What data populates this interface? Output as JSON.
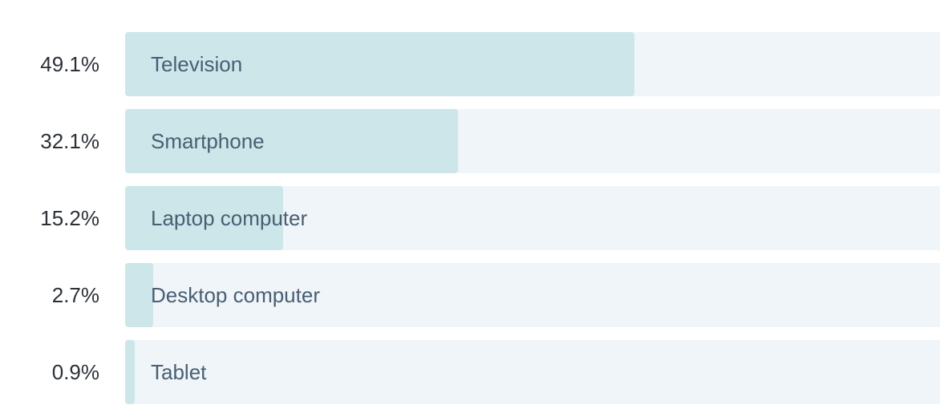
{
  "chart_data": {
    "type": "bar",
    "orientation": "horizontal",
    "categories": [
      "Television",
      "Smartphone",
      "Laptop computer",
      "Desktop computer",
      "Tablet"
    ],
    "values": [
      49.1,
      32.1,
      15.2,
      2.7,
      0.9
    ],
    "value_labels": [
      "49.1%",
      "32.1%",
      "15.2%",
      "2.7%",
      "0.9%"
    ],
    "unit": "%",
    "xlim": [
      0,
      78.5
    ],
    "grid": false,
    "legend": "none",
    "colors": {
      "bar": "#cde6ea",
      "track": "#eff5f8",
      "label_text": "#4a5e74",
      "value_text": "#2c3138"
    }
  }
}
